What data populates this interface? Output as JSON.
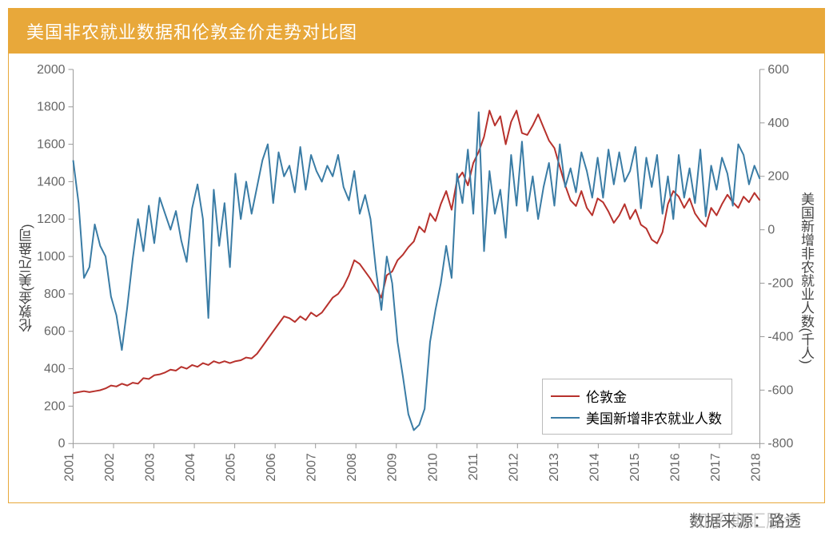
{
  "header": {
    "title": "美国非农就业数据和伦敦金价走势对比图"
  },
  "source_label": "数据来源：路透",
  "watermark": "知乎 期汇股金",
  "chart": {
    "type": "line-dual-axis",
    "background_color": "#ffffff",
    "border_color": "#e8a83a",
    "axis_color": "#999999",
    "x": {
      "categories": [
        "2001",
        "2002",
        "2003",
        "2004",
        "2005",
        "2006",
        "2007",
        "2008",
        "2009",
        "2010",
        "2011",
        "2012",
        "2013",
        "2014",
        "2015",
        "2016",
        "2017",
        "2018"
      ],
      "label_fontsize": 16,
      "rotate": -90
    },
    "y_left": {
      "label": "伦敦金(美元/盎司)",
      "min": 0,
      "max": 2000,
      "step": 200,
      "ticks": [
        0,
        200,
        400,
        600,
        800,
        1000,
        1200,
        1400,
        1600,
        1800,
        2000
      ]
    },
    "y_right": {
      "label": "美国新增非农就业人数(千人)",
      "min": -800,
      "max": 600,
      "step": 200,
      "ticks": [
        -800,
        -600,
        -400,
        -200,
        0,
        200,
        400,
        600
      ]
    },
    "series": [
      {
        "name": "伦敦金",
        "axis": "left",
        "color": "#b7312c",
        "line_width": 2,
        "values": [
          270,
          275,
          280,
          275,
          280,
          285,
          295,
          310,
          305,
          320,
          310,
          325,
          320,
          350,
          345,
          365,
          370,
          380,
          395,
          390,
          410,
          400,
          420,
          410,
          430,
          420,
          440,
          430,
          440,
          430,
          440,
          445,
          460,
          455,
          480,
          520,
          560,
          600,
          640,
          680,
          670,
          650,
          680,
          660,
          700,
          680,
          700,
          740,
          780,
          800,
          840,
          900,
          980,
          960,
          920,
          880,
          830,
          780,
          900,
          920,
          980,
          1010,
          1050,
          1080,
          1160,
          1130,
          1230,
          1190,
          1280,
          1350,
          1250,
          1410,
          1450,
          1380,
          1500,
          1560,
          1640,
          1780,
          1700,
          1750,
          1600,
          1720,
          1780,
          1660,
          1650,
          1700,
          1760,
          1690,
          1620,
          1580,
          1480,
          1380,
          1300,
          1270,
          1350,
          1260,
          1220,
          1310,
          1290,
          1240,
          1180,
          1220,
          1280,
          1200,
          1250,
          1170,
          1150,
          1090,
          1070,
          1130,
          1280,
          1350,
          1320,
          1260,
          1310,
          1230,
          1190,
          1160,
          1260,
          1220,
          1280,
          1330,
          1290,
          1260,
          1320,
          1290,
          1340,
          1300
        ]
      },
      {
        "name": "美国新增非农就业人数",
        "axis": "right",
        "color": "#3a7ca5",
        "line_width": 2,
        "values": [
          260,
          100,
          -180,
          -140,
          20,
          -60,
          -100,
          -250,
          -320,
          -450,
          -290,
          -110,
          40,
          -80,
          90,
          -50,
          120,
          60,
          0,
          70,
          -40,
          -120,
          80,
          170,
          40,
          -330,
          150,
          -60,
          100,
          -140,
          210,
          40,
          180,
          60,
          160,
          260,
          320,
          100,
          290,
          200,
          240,
          140,
          310,
          150,
          280,
          220,
          180,
          240,
          200,
          280,
          160,
          110,
          220,
          60,
          130,
          40,
          -150,
          -300,
          -100,
          -200,
          -420,
          -550,
          -690,
          -750,
          -730,
          -670,
          -420,
          -300,
          -200,
          -60,
          -180,
          210,
          100,
          300,
          60,
          440,
          -80,
          220,
          60,
          150,
          -30,
          280,
          90,
          330,
          70,
          200,
          40,
          160,
          250,
          90,
          320,
          160,
          230,
          140,
          290,
          220,
          120,
          270,
          120,
          300,
          170,
          290,
          180,
          220,
          310,
          80,
          270,
          160,
          280,
          60,
          200,
          40,
          280,
          120,
          230,
          100,
          300,
          50,
          240,
          150,
          270,
          210,
          90,
          320,
          280,
          170,
          240,
          190
        ]
      }
    ],
    "legend": {
      "items": [
        "伦敦金",
        "美国新增非农就业人数"
      ],
      "position": "inside-bottom-right",
      "border_color": "#bbbbbb"
    }
  }
}
